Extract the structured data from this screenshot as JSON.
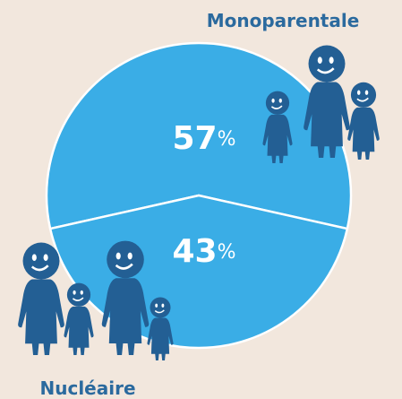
{
  "chart_data": {
    "type": "pie",
    "categories": [
      "Monoparentale",
      "Nucléaire"
    ],
    "values": [
      57,
      43
    ],
    "value_labels": [
      "57%",
      "43%"
    ],
    "colors": [
      "#3aade6",
      "#3aade6"
    ]
  }
}
